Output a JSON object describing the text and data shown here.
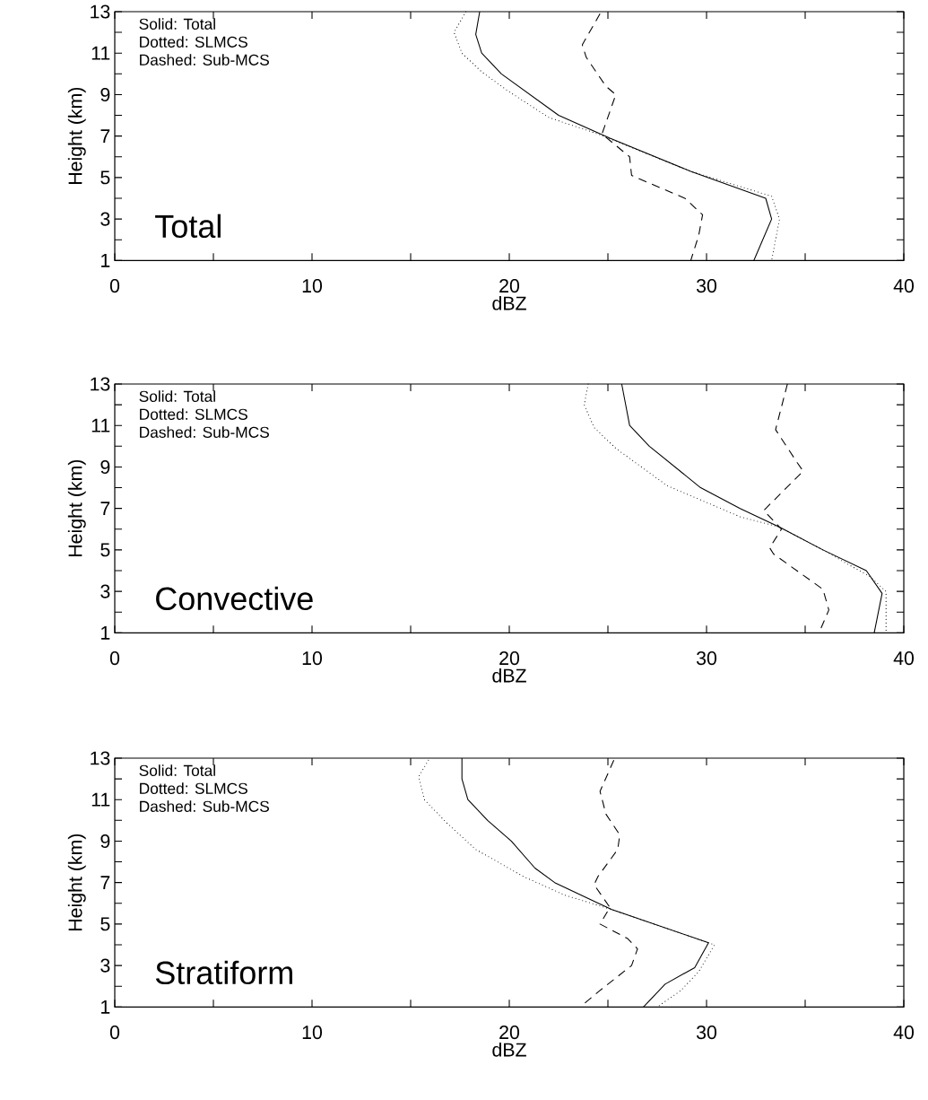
{
  "chart_data": [
    {
      "type": "line",
      "title": "Total",
      "xlabel": "dBZ",
      "ylabel": "Height (km)",
      "annotations": [
        "Solid: Total",
        "Dotted: SLMCS",
        "Dashed: Sub-MCS"
      ],
      "xlim": [
        0,
        40
      ],
      "ylim": [
        1,
        13
      ],
      "xticks": [
        0,
        {
          "value": 5,
          "label": null
        },
        10,
        {
          "value": 15,
          "label": null
        },
        20,
        {
          "value": 25,
          "label": null
        },
        30,
        {
          "value": 35,
          "label": null
        },
        40
      ],
      "yticks": [
        1,
        {
          "value": 2,
          "label": null
        },
        3,
        {
          "value": 4,
          "label": null
        },
        5,
        {
          "value": 6,
          "label": null
        },
        7,
        {
          "value": 8,
          "label": null
        },
        9,
        {
          "value": 10,
          "label": null
        },
        11,
        {
          "value": 12,
          "label": null
        },
        13
      ],
      "grid": false,
      "series": [
        {
          "color": "#000000",
          "line_style": "solid",
          "x": [
            18.5,
            18.3,
            18.6,
            19.6,
            22.5,
            25.1,
            29.2,
            33.0,
            33.3,
            32.4
          ],
          "values": [
            13.0,
            11.9,
            11.0,
            10.0,
            8.0,
            6.9,
            5.3,
            4.0,
            3.0,
            1.0
          ]
        },
        {
          "color": "#000000",
          "line_style": "dotted",
          "x": [
            17.8,
            17.2,
            17.6,
            18.6,
            19.9,
            22.0,
            24.5,
            29.2,
            33.3,
            33.7,
            33.3
          ],
          "values": [
            13.0,
            12.0,
            11.0,
            10.1,
            9.2,
            7.9,
            7.1,
            5.3,
            4.1,
            3.0,
            1.0
          ]
        },
        {
          "color": "#000000",
          "line_style": "dashed",
          "x": [
            24.6,
            23.7,
            23.9,
            24.9,
            25.4,
            24.7,
            26.1,
            26.2,
            28.9,
            29.8,
            29.6,
            29.2
          ],
          "values": [
            12.9,
            11.4,
            10.8,
            9.4,
            9.0,
            7.1,
            6.0,
            5.1,
            4.0,
            3.2,
            2.2,
            1.0
          ]
        }
      ]
    },
    {
      "type": "line",
      "title": "Convective",
      "xlabel": "dBZ",
      "ylabel": "Height (km)",
      "annotations": [
        "Solid: Total",
        "Dotted: SLMCS",
        "Dashed: Sub-MCS"
      ],
      "xlim": [
        0,
        40
      ],
      "ylim": [
        1,
        13
      ],
      "xticks": [
        0,
        {
          "value": 5,
          "label": null
        },
        10,
        {
          "value": 15,
          "label": null
        },
        20,
        {
          "value": 25,
          "label": null
        },
        30,
        {
          "value": 35,
          "label": null
        },
        40
      ],
      "yticks": [
        1,
        {
          "value": 2,
          "label": null
        },
        3,
        {
          "value": 4,
          "label": null
        },
        5,
        {
          "value": 6,
          "label": null
        },
        7,
        {
          "value": 8,
          "label": null
        },
        9,
        {
          "value": 10,
          "label": null
        },
        11,
        {
          "value": 12,
          "label": null
        },
        13
      ],
      "grid": false,
      "series": [
        {
          "color": "#000000",
          "line_style": "solid",
          "x": [
            25.7,
            26.1,
            27.1,
            29.7,
            31.7,
            33.7,
            35.9,
            38.1,
            38.9,
            38.5
          ],
          "values": [
            13.0,
            11.0,
            10.0,
            8.0,
            7.0,
            6.1,
            5.0,
            4.0,
            2.9,
            1.0
          ]
        },
        {
          "color": "#000000",
          "line_style": "dotted",
          "x": [
            24.0,
            23.8,
            24.3,
            25.4,
            28.0,
            31.7,
            33.7,
            35.9,
            38.3,
            39.1,
            39.1
          ],
          "values": [
            13.0,
            12.0,
            10.9,
            9.9,
            8.1,
            6.6,
            6.1,
            5.0,
            3.7,
            3.0,
            1.0
          ]
        },
        {
          "color": "#000000",
          "line_style": "dashed",
          "x": [
            34.1,
            33.5,
            34.6,
            34.9,
            32.9,
            33.8,
            33.2,
            33.4,
            35.9,
            36.2,
            35.7
          ],
          "values": [
            13.0,
            10.8,
            9.2,
            8.8,
            6.9,
            6.0,
            5.1,
            4.8,
            3.1,
            2.1,
            1.0
          ]
        }
      ]
    },
    {
      "type": "line",
      "title": "Stratiform",
      "xlabel": "dBZ",
      "ylabel": "Height (km)",
      "annotations": [
        "Solid: Total",
        "Dotted: SLMCS",
        "Dashed: Sub-MCS"
      ],
      "xlim": [
        0,
        40
      ],
      "ylim": [
        1,
        13
      ],
      "xticks": [
        0,
        {
          "value": 5,
          "label": null
        },
        10,
        {
          "value": 15,
          "label": null
        },
        20,
        {
          "value": 25,
          "label": null
        },
        30,
        {
          "value": 35,
          "label": null
        },
        40
      ],
      "yticks": [
        1,
        {
          "value": 2,
          "label": null
        },
        3,
        {
          "value": 4,
          "label": null
        },
        5,
        {
          "value": 6,
          "label": null
        },
        7,
        {
          "value": 8,
          "label": null
        },
        9,
        {
          "value": 10,
          "label": null
        },
        11,
        {
          "value": 12,
          "label": null
        },
        13
      ],
      "grid": false,
      "series": [
        {
          "color": "#000000",
          "line_style": "solid",
          "x": [
            17.6,
            17.6,
            17.9,
            18.9,
            20.1,
            21.3,
            22.3,
            24.3,
            25.2,
            30.1,
            29.4,
            27.9,
            26.8
          ],
          "values": [
            13.0,
            12.0,
            11.0,
            10.0,
            9.0,
            7.7,
            7.0,
            6.1,
            5.7,
            4.1,
            2.9,
            2.1,
            1.0
          ]
        },
        {
          "color": "#000000",
          "line_style": "dotted",
          "x": [
            15.9,
            15.4,
            15.7,
            16.8,
            18.3,
            20.7,
            22.8,
            25.2,
            30.4,
            29.6,
            28.7,
            27.5
          ],
          "values": [
            12.9,
            12.1,
            11.0,
            9.9,
            8.6,
            7.3,
            6.4,
            5.7,
            4.0,
            2.7,
            1.8,
            1.0
          ]
        },
        {
          "color": "#000000",
          "line_style": "dashed",
          "x": [
            25.3,
            24.6,
            24.9,
            25.6,
            25.5,
            24.5,
            24.3,
            25.1,
            24.6,
            26.0,
            26.5,
            26.2,
            24.6,
            23.6
          ],
          "values": [
            12.9,
            11.4,
            10.3,
            9.3,
            8.6,
            7.3,
            6.9,
            5.8,
            5.0,
            4.3,
            3.8,
            3.0,
            1.8,
            1.0
          ]
        }
      ]
    }
  ]
}
